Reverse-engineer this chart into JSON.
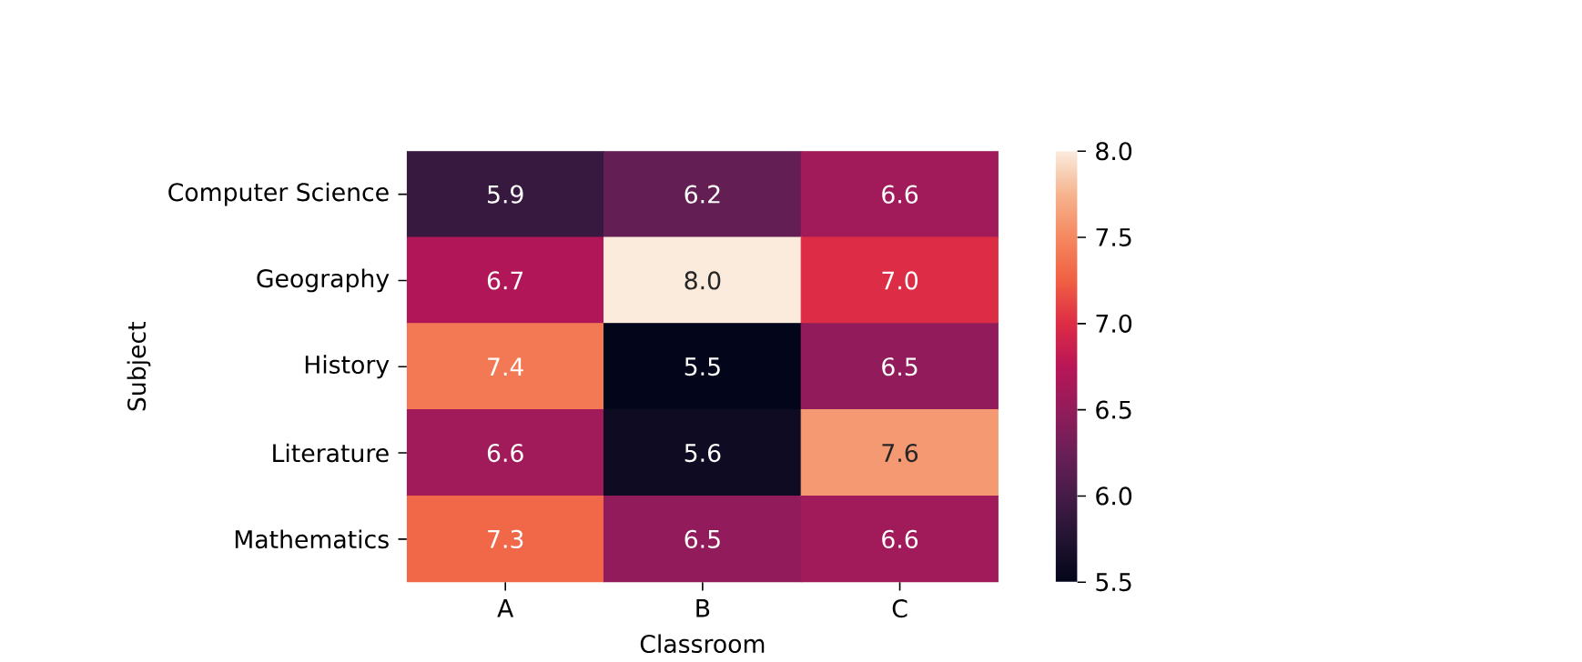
{
  "chart_data": {
    "type": "heatmap",
    "xlabel": "Classroom",
    "ylabel": "Subject",
    "categories": [
      "A",
      "B",
      "C"
    ],
    "y_categories": [
      "Computer Science",
      "Geography",
      "History",
      "Literature",
      "Mathematics"
    ],
    "cells": [
      [
        5.9,
        6.2,
        6.6
      ],
      [
        6.7,
        8.0,
        7.0
      ],
      [
        7.4,
        5.5,
        6.5
      ],
      [
        6.6,
        5.6,
        7.6
      ],
      [
        7.3,
        6.5,
        6.6
      ]
    ],
    "cell_labels": [
      [
        "5.9",
        "6.2",
        "6.6"
      ],
      [
        "6.7",
        "8.0",
        "7.0"
      ],
      [
        "7.4",
        "5.5",
        "6.5"
      ],
      [
        "6.6",
        "5.6",
        "7.6"
      ],
      [
        "7.3",
        "6.5",
        "6.6"
      ]
    ],
    "clim": [
      5.5,
      8.0
    ],
    "cticks": [
      5.5,
      {
        "value": 6.0,
        "label": "6.0"
      },
      6.5,
      {
        "value": 7.0,
        "label": "7.0"
      },
      7.5,
      {
        "value": 8.0,
        "label": "8.0"
      }
    ]
  }
}
